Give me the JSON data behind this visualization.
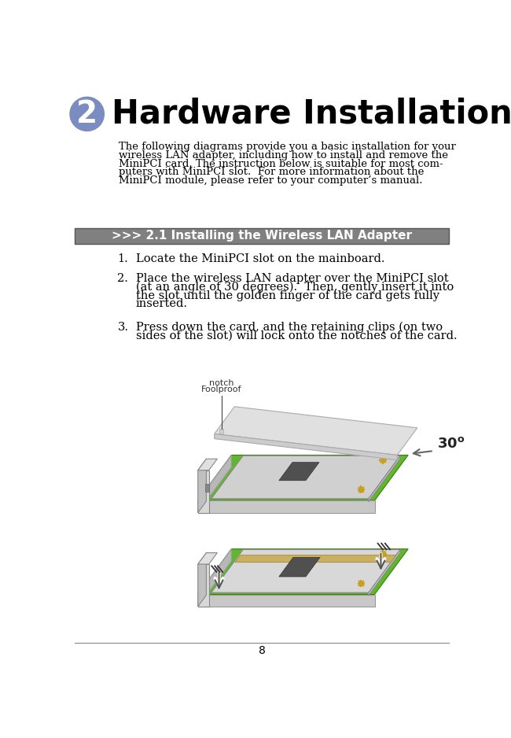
{
  "title": "Hardware Installation",
  "chapter_num": "2",
  "circle_color": "#7b8cc0",
  "circle_text_color": "#ffffff",
  "intro_lines": [
    "The following diagrams provide you a basic installation for your",
    "wireless LAN adapter, including how to install and remove the",
    "MiniPCI card. The instruction below is suitable for most com-",
    "puters with MiniPCI slot.  For more information about the",
    "MiniPCI module, please refer to your computer’s manual."
  ],
  "section_bar_color": "#808080",
  "section_bar_text": ">>> 2.1 Installing the Wireless LAN Adapter",
  "section_bar_text_color": "#ffffff",
  "step1_num": "1.",
  "step1_text": "Locate the MiniPCI slot on the mainboard.",
  "step2_num": "2.",
  "step2_lines": [
    "Place the wireless LAN adapter over the MiniPCI slot",
    "(at an angle of 30 degrees).  Then, gently insert it into",
    "the slot until the golden finger of the card gets fully",
    "inserted."
  ],
  "step3_num": "3.",
  "step3_lines": [
    "Press down the card, and the retaining clips (on two",
    "sides of the slot) will lock onto the notches of the card."
  ],
  "page_num": "8",
  "bg_color": "#ffffff",
  "text_color": "#000000",
  "title_fontsize": 30,
  "body_fontsize": 9.5,
  "section_fontsize": 11,
  "step_fontsize": 10.5,
  "foolproof_label": [
    "Foolproof",
    "notch"
  ],
  "angle_label": "30",
  "pcb_green": "#5db82a",
  "pcb_edge": "#3a7a10",
  "card_color": "#d8d8d8",
  "card_edge": "#999999",
  "slot_color": "#c8c8a0",
  "side_color": "#c8c8c8",
  "side_edge": "#999999",
  "chip_color": "#505050",
  "screw_color": "#c8a020",
  "slot_connector_color": "#c8b060"
}
